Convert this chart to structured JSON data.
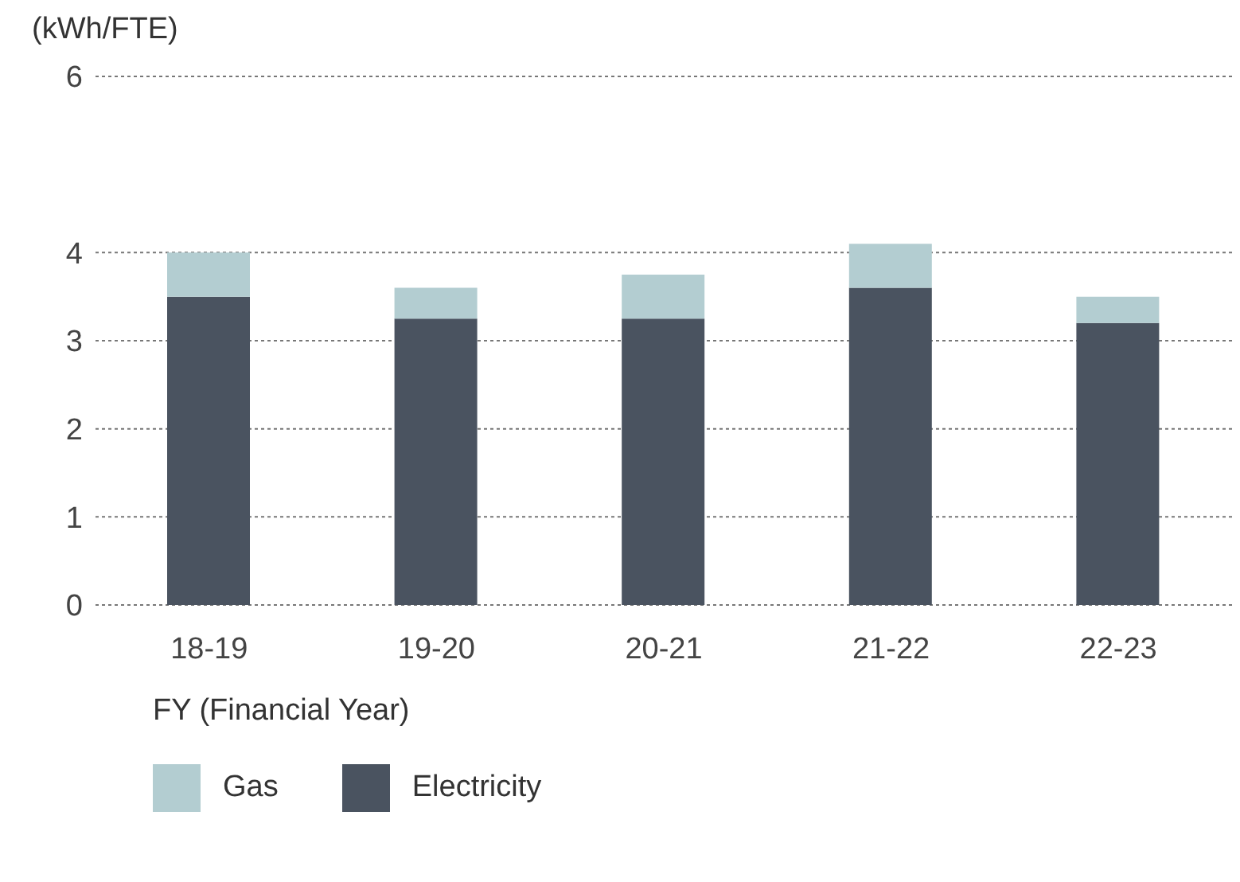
{
  "chart_data": {
    "type": "bar",
    "ylabel": "(kWh/FTE)",
    "xlabel": "FY (Financial Year)",
    "categories": [
      "18-19",
      "19-20",
      "20-21",
      "21-22",
      "22-23"
    ],
    "stacked": true,
    "series": [
      {
        "name": "Electricity",
        "color": "#4a5360",
        "values": [
          3.5,
          3.25,
          3.25,
          3.6,
          3.2
        ]
      },
      {
        "name": "Gas",
        "color": "#b3cdd1",
        "values": [
          0.5,
          0.35,
          0.5,
          0.5,
          0.3
        ]
      }
    ],
    "ylim": [
      0,
      6
    ],
    "yticks": [
      0,
      1,
      2,
      3,
      4,
      6
    ],
    "grid": "y",
    "legend": "bottom"
  }
}
